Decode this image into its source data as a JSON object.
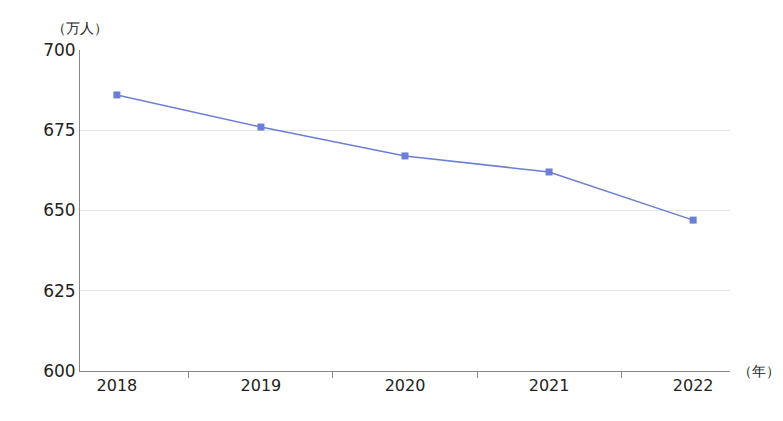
{
  "chart_data": {
    "type": "line",
    "y_label": "（万人）",
    "x_label": "（年）",
    "categories": [
      "2018",
      "2019",
      "2020",
      "2021",
      "2022"
    ],
    "values": [
      686,
      676,
      667,
      662,
      647
    ],
    "color": "#6b7fd7",
    "marker": "square",
    "line_style": "solid",
    "ylim": [
      600,
      700
    ],
    "yticks": [
      600,
      625,
      650,
      675,
      700
    ],
    "grid": true
  }
}
